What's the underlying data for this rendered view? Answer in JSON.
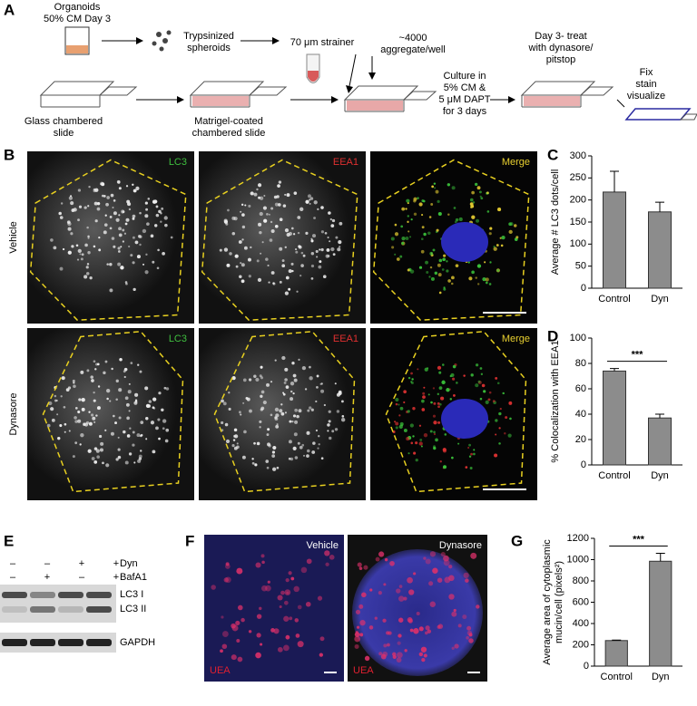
{
  "panel_letters": [
    "A",
    "B",
    "C",
    "D",
    "E",
    "F",
    "G"
  ],
  "schematic": {
    "organoids": [
      "Organoids",
      "50% CM Day 3"
    ],
    "trypsin": [
      "Trypsinized",
      "spheroids"
    ],
    "strainer": [
      "70 μm strainer"
    ],
    "aggregate": [
      "~4000",
      "aggregate/well"
    ],
    "treat": [
      "Day 3- treat",
      "with dynasore/",
      "pitstop"
    ],
    "fix": [
      "Fix",
      "stain",
      "visualize"
    ],
    "glass": [
      "Glass chambered",
      "slide"
    ],
    "matrigel": [
      "Matrigel-coated",
      "chambered slide"
    ],
    "culture": [
      "Culture in",
      "5% CM &",
      "5 μM DAPT",
      "for 3 days"
    ]
  },
  "micrographs": {
    "channels": [
      "LC3",
      "EEA1",
      "Merge"
    ],
    "conditions": [
      "Vehicle",
      "Dynasore"
    ]
  },
  "western": {
    "rows": [
      {
        "label": "Dyn",
        "signs": [
          "–",
          "–",
          "+",
          "+"
        ]
      },
      {
        "label": "BafA1",
        "signs": [
          "–",
          "+",
          "–",
          "+"
        ]
      }
    ],
    "bands": [
      "LC3 I",
      "LC3 II",
      "GAPDH"
    ]
  },
  "staining": {
    "conditions": [
      "Vehicle",
      "Dynasore"
    ],
    "stain": "UEA"
  },
  "chart_data": [
    {
      "type": "bar",
      "ylabel": [
        "Average # LC3 dots/cell"
      ],
      "categories": [
        "Control",
        "Dyn"
      ],
      "values": [
        218,
        173
      ],
      "errors": [
        47,
        22
      ],
      "color": "#8c8c8c",
      "ylim": [
        0,
        300
      ],
      "yticks": [
        0,
        50,
        100,
        150,
        200,
        250,
        300
      ]
    },
    {
      "type": "bar",
      "ylabel": [
        "% Colocalization with EEA1"
      ],
      "categories": [
        "Control",
        "Dyn"
      ],
      "values": [
        74,
        37
      ],
      "errors": [
        2,
        3
      ],
      "color": "#8c8c8c",
      "annotation": "***",
      "ylim": [
        0,
        100
      ],
      "yticks": [
        0,
        20,
        40,
        60,
        80,
        100
      ]
    },
    {
      "type": "bar",
      "ylabel": [
        "Average area of cytoplasmic",
        "mucin/cell (pixels²)"
      ],
      "categories": [
        "Control",
        "Dyn"
      ],
      "values": [
        240,
        985
      ],
      "errors": [
        5,
        75
      ],
      "color": "#8c8c8c",
      "annotation": "***",
      "ylim": [
        0,
        1200
      ],
      "yticks": [
        0,
        200,
        400,
        600,
        800,
        1000,
        1200
      ]
    }
  ]
}
